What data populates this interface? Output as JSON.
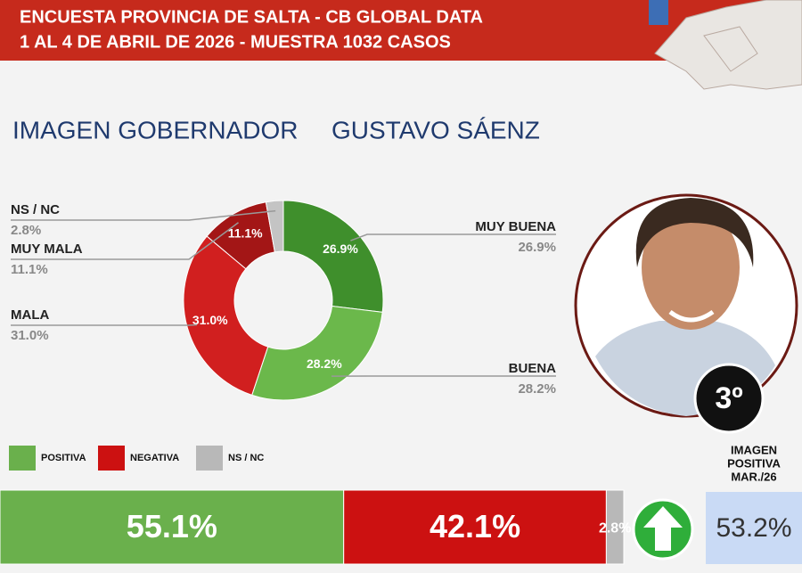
{
  "header": {
    "line1": "ENCUESTA PROVINCIA DE SALTA - CB GLOBAL DATA",
    "line2": "1 AL 4 DE ABRIL DE 2026 - MUESTRA 1032 CASOS"
  },
  "badge": "3º",
  "previous": {
    "label_lines": [
      "IMAGEN",
      "POSITIVA",
      "MAR./26"
    ],
    "value": "53.2%"
  },
  "chart_data": [
    {
      "type": "pie",
      "title": "IMAGEN GOBERNADOR",
      "subtitle": "GUSTAVO SÁENZ",
      "donut": true,
      "categories": [
        "MUY BUENA",
        "BUENA",
        "MALA",
        "MUY MALA",
        "NS / NC"
      ],
      "values": [
        26.9,
        28.2,
        31.0,
        11.1,
        2.8
      ],
      "value_labels": [
        "26.9%",
        "28.2%",
        "31.0%",
        "11.1%",
        "2.8%"
      ],
      "colors": [
        "#3f8f2c",
        "#6bb84b",
        "#d11f1f",
        "#a31616",
        "#c4c4c4"
      ]
    },
    {
      "type": "stacked_bar",
      "orientation": "horizontal",
      "xlim": [
        0,
        100
      ],
      "series": [
        {
          "name": "POSITIVA",
          "color": "#6ab04c",
          "values": [
            55.1
          ],
          "value_labels": [
            "55.1%"
          ]
        },
        {
          "name": "NEGATIVA",
          "color": "#cc1111",
          "values": [
            42.1
          ],
          "value_labels": [
            "42.1%"
          ]
        },
        {
          "name": "NS / NC",
          "color": "#b8b8b8",
          "values": [
            2.8
          ],
          "value_labels": [
            "2.8%"
          ]
        }
      ]
    }
  ]
}
